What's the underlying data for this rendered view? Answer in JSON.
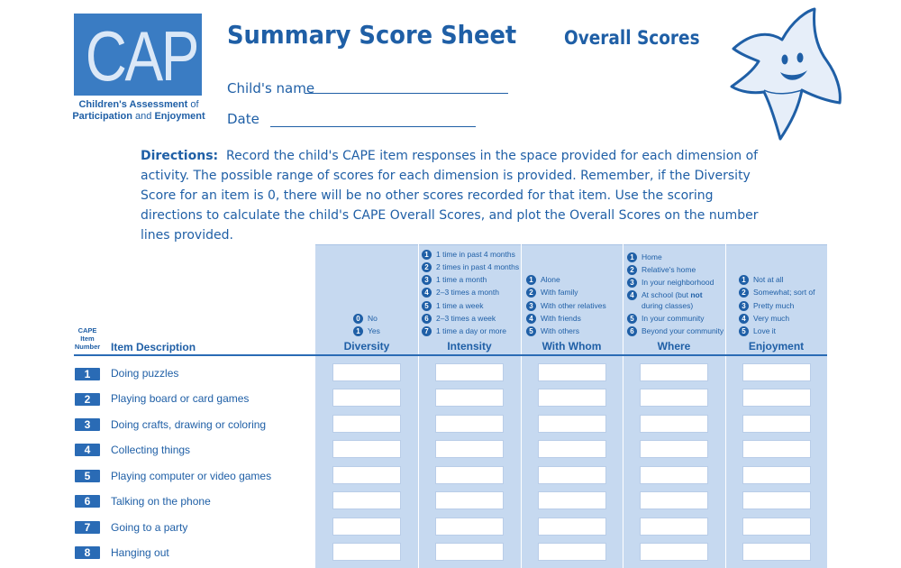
{
  "logo": {
    "word": "CAPE",
    "subtitle_line1": "Children's Assessment",
    "subtitle_of": "of",
    "subtitle_line2": "Participation",
    "subtitle_and": "and",
    "subtitle_line2b": "Enjoyment"
  },
  "header": {
    "title": "Summary Score Sheet",
    "section": "Overall Scores",
    "name_label": "Child's name",
    "date_label": "Date"
  },
  "directions": {
    "label": "Directions:",
    "text": "Record the child's CAPE item responses in the space provided for each dimension of activity. The possible range of scores for each dimension is provided. Remember, if the Diversity Score for an item is 0, there will be no other scores recorded for that item. Use the scoring directions to calculate the child's CAPE Overall Scores, and plot the Overall Scores on the number lines provided."
  },
  "table": {
    "item_number_header": [
      "CAPE",
      "Item",
      "Number"
    ],
    "item_description_header": "Item Description",
    "columns": [
      {
        "title": "Diversity",
        "legend": [
          [
            "0",
            "No"
          ],
          [
            "1",
            "Yes"
          ]
        ]
      },
      {
        "title": "Intensity",
        "legend": [
          [
            "1",
            "1 time in past 4 months"
          ],
          [
            "2",
            "2 times in past 4 months"
          ],
          [
            "3",
            "1 time a month"
          ],
          [
            "4",
            "2–3 times a month"
          ],
          [
            "5",
            "1 time a week"
          ],
          [
            "6",
            "2–3 times a week"
          ],
          [
            "7",
            "1 time a day or more"
          ]
        ]
      },
      {
        "title": "With Whom",
        "legend": [
          [
            "1",
            "Alone"
          ],
          [
            "2",
            "With family"
          ],
          [
            "3",
            "With other relatives"
          ],
          [
            "4",
            "With friends"
          ],
          [
            "5",
            "With others"
          ]
        ]
      },
      {
        "title": "Where",
        "legend": [
          [
            "1",
            "Home"
          ],
          [
            "2",
            "Relative's home"
          ],
          [
            "3",
            "In your neighborhood"
          ],
          [
            "4",
            "At school (but not during classes)"
          ],
          [
            "5",
            "In your community"
          ],
          [
            "6",
            "Beyond your community"
          ]
        ]
      },
      {
        "title": "Enjoyment",
        "legend": [
          [
            "1",
            "Not at all"
          ],
          [
            "2",
            "Somewhat; sort of"
          ],
          [
            "3",
            "Pretty much"
          ],
          [
            "4",
            "Very much"
          ],
          [
            "5",
            "Love it"
          ]
        ]
      }
    ],
    "where_item4_line1_prefix": "At school (but",
    "where_item4_line1_bold": "not",
    "where_item4_line2": "during classes)",
    "rows": [
      {
        "number": "1",
        "description": "Doing puzzles"
      },
      {
        "number": "2",
        "description": "Playing board or card games"
      },
      {
        "number": "3",
        "description": "Doing crafts, drawing or coloring"
      },
      {
        "number": "4",
        "description": "Collecting things"
      },
      {
        "number": "5",
        "description": "Playing computer or video games"
      },
      {
        "number": "6",
        "description": "Talking on the phone"
      },
      {
        "number": "7",
        "description": "Going to a party"
      },
      {
        "number": "8",
        "description": "Hanging out"
      }
    ]
  },
  "colors": {
    "primary": "#1f5fa6",
    "column_fill": "#c6d9f0",
    "logo_fill": "#3a7cc3"
  }
}
